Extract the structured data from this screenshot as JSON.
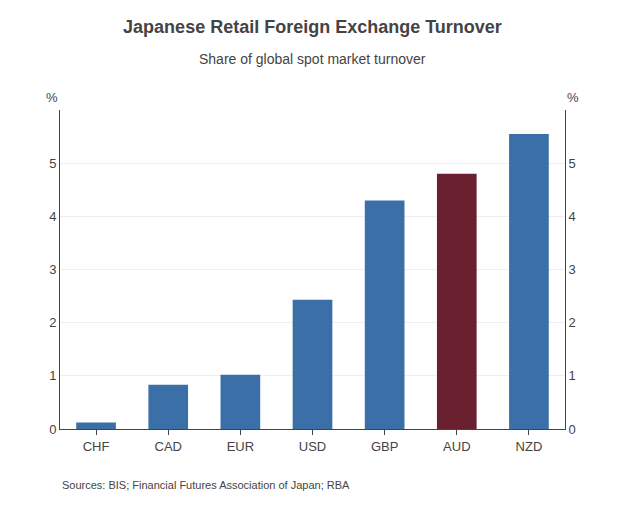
{
  "chart_data": {
    "type": "bar",
    "title": "Japanese Retail Foreign Exchange Turnover",
    "subtitle": "Share of global spot market turnover",
    "categories": [
      "CHF",
      "CAD",
      "EUR",
      "USD",
      "GBP",
      "AUD",
      "NZD"
    ],
    "values": [
      0.12,
      0.83,
      1.02,
      2.43,
      4.3,
      4.8,
      5.55
    ],
    "colors": [
      "#3a6fa8",
      "#3a6fa8",
      "#3a6fa8",
      "#3a6fa8",
      "#3a6fa8",
      "#6b2030",
      "#3a6fa8"
    ],
    "ylabel": "%",
    "y2label": "%",
    "ylim": [
      0,
      6
    ],
    "yticks": [
      0,
      1,
      2,
      3,
      4,
      5
    ],
    "y2lim": [
      0,
      6
    ],
    "y2ticks": [
      0,
      1,
      2,
      3,
      4,
      5
    ],
    "grid": true,
    "source": "Sources: BIS; Financial Futures Association of Japan; RBA"
  }
}
